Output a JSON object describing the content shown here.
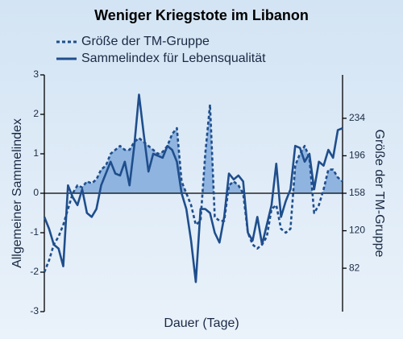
{
  "chart_data": {
    "type": "line",
    "title": "Weniger Kriegstote im Libanon",
    "xlabel": "Dauer (Tage)",
    "ylabel": "Allgemeiner Sammelindex",
    "y2label": "Größe der TM-Gruppe",
    "categories": [
      null,
      null,
      null,
      null,
      null,
      null,
      null,
      null,
      null,
      null,
      null,
      null,
      null,
      null,
      null,
      null,
      null,
      null,
      null,
      null,
      null,
      null,
      null,
      null,
      null,
      null,
      null,
      null,
      null,
      null,
      null,
      null,
      null,
      null,
      null,
      null,
      null,
      null,
      null,
      null,
      null,
      null,
      null,
      null,
      null,
      null,
      null,
      null,
      null,
      null,
      null,
      null,
      null,
      null,
      null,
      null,
      null,
      null,
      null,
      null,
      null,
      null,
      null,
      null
    ],
    "ylim": [
      -3,
      3
    ],
    "yticks": [
      -3,
      -2,
      -1,
      0,
      1,
      2,
      3
    ],
    "y2lim": [
      38,
      278
    ],
    "y2ticks": [
      82,
      120,
      158,
      196,
      234
    ],
    "fill_color": "#8fb4e0",
    "series": [
      {
        "name": "Größe der TM-Gruppe",
        "color": "#1f4e8c",
        "axis": "y2",
        "line_style": "dashed",
        "values": [
          78,
          90,
          106,
          114,
          126,
          142,
          158,
          166,
          164,
          170,
          168,
          172,
          182,
          186,
          198,
          202,
          206,
          202,
          202,
          210,
          214,
          210,
          206,
          202,
          198,
          200,
          206,
          218,
          224,
          170,
          158,
          146,
          126,
          130,
          198,
          248,
          134,
          130,
          130,
          166,
          170,
          166,
          158,
          118,
          106,
          102,
          106,
          114,
          142,
          146,
          122,
          118,
          122,
          186,
          198,
          206,
          194,
          138,
          146,
          162,
          182,
          182,
          174,
          170
        ]
      },
      {
        "name": "Sammelindex für Lebensqualität",
        "color": "#1f4e8c",
        "line_style": "solid",
        "values": [
          -0.6,
          -0.9,
          -1.3,
          -1.4,
          -1.85,
          0.2,
          -0.1,
          -0.3,
          0.1,
          -0.5,
          -0.6,
          -0.4,
          0.2,
          0.5,
          0.8,
          0.5,
          0.45,
          0.8,
          0.2,
          1.2,
          2.5,
          1.5,
          0.55,
          1.0,
          0.95,
          0.9,
          1.2,
          1.1,
          0.8,
          0.0,
          -0.4,
          -1.2,
          -2.25,
          -0.4,
          -0.4,
          -0.5,
          -1.0,
          -1.25,
          -0.6,
          0.5,
          0.35,
          0.45,
          0.3,
          -1.0,
          -1.2,
          -0.6,
          -1.3,
          -0.8,
          -0.3,
          0.75,
          -0.6,
          -0.2,
          0.1,
          1.2,
          1.15,
          0.8,
          1.0,
          0.1,
          0.8,
          0.7,
          1.1,
          0.9,
          1.6,
          1.65
        ]
      }
    ]
  }
}
